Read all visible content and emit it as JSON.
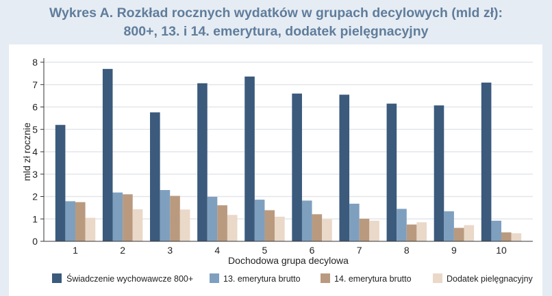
{
  "title": {
    "line1": "Wykres A. Rozkład rocznych wydatków w grupach decylowych (mld zł):",
    "line2": "800+, 13. i 14. emerytura, dodatek pielęgnacyjny"
  },
  "colors": {
    "s800": "#3b5a7c",
    "e13": "#7f9fbf",
    "e14": "#b99a7f",
    "dodatek": "#ead8c8",
    "grid": "#e3e6ea",
    "background": "#e6ecf3",
    "title": "#5f7d9c"
  },
  "chart_data": {
    "type": "bar",
    "title": "Wykres A. Rozkład rocznych wydatków w grupach decylowych (mld zł): 800+, 13. i 14. emerytura, dodatek pielęgnacyjny",
    "xlabel": "Dochodowa grupa decylowa",
    "ylabel": "mld zł rocznie",
    "categories": [
      "1",
      "2",
      "3",
      "4",
      "5",
      "6",
      "7",
      "8",
      "9",
      "10"
    ],
    "yticks": [
      0,
      1,
      2,
      3,
      4,
      5,
      6,
      7,
      8
    ],
    "ylim": [
      0,
      8
    ],
    "grid": true,
    "legend_position": "bottom",
    "series": [
      {
        "name": "Świadczenie wychowawcze 800+",
        "color": "#3b5a7c",
        "values": [
          5.2,
          7.7,
          5.76,
          7.06,
          7.36,
          6.6,
          6.55,
          6.15,
          6.07,
          7.09
        ]
      },
      {
        "name": "13. emerytura brutto",
        "color": "#7f9fbf",
        "values": [
          1.79,
          2.18,
          2.29,
          1.99,
          1.86,
          1.82,
          1.68,
          1.45,
          1.34,
          0.92
        ]
      },
      {
        "name": "14. emerytura brutto",
        "color": "#b99a7f",
        "values": [
          1.75,
          2.1,
          2.03,
          1.61,
          1.39,
          1.21,
          1.01,
          0.75,
          0.6,
          0.4
        ]
      },
      {
        "name": "Dodatek pielęgnacyjny",
        "color": "#ead8c8",
        "values": [
          1.05,
          1.43,
          1.42,
          1.18,
          1.1,
          0.99,
          0.92,
          0.85,
          0.72,
          0.36
        ]
      }
    ]
  }
}
